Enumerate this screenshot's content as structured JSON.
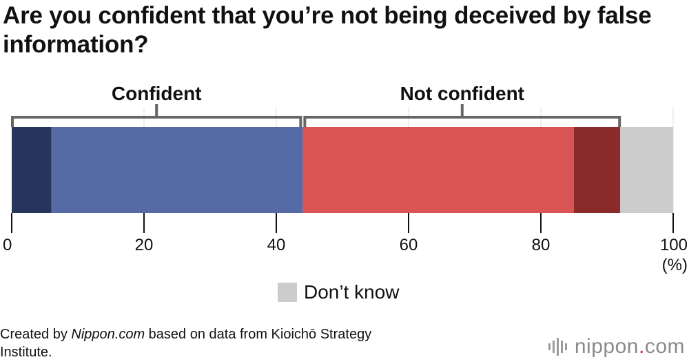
{
  "title": "Are you confident that you’re not being deceived by false information?",
  "chart_data": {
    "type": "bar",
    "orientation": "horizontal",
    "stacked": true,
    "segments": [
      {
        "name": "",
        "value": 6,
        "color": "#27345c"
      },
      {
        "name": "",
        "value": 38,
        "color": "#566aa6"
      },
      {
        "name": "",
        "value": 41,
        "color": "#d95555"
      },
      {
        "name": "",
        "value": 7,
        "color": "#8b2a2a"
      },
      {
        "name": "Don’t know",
        "value": 8,
        "color": "#cccccc"
      }
    ],
    "groups": [
      {
        "label": "Confident",
        "from": 0,
        "to": 44
      },
      {
        "label": "Not confident",
        "from": 44,
        "to": 92
      }
    ],
    "xlim": [
      0,
      100
    ],
    "xticks": [
      "0",
      "20",
      "40",
      "60",
      "80",
      "100"
    ],
    "xunit": "(%)",
    "grid": true,
    "legend": {
      "position": "bottom",
      "label": "Don’t know"
    }
  },
  "footer": {
    "prefix": "Created by ",
    "source": "Nippon.com",
    "suffix": " based on data from Kioichō Strategy Institute."
  },
  "logo": {
    "name": "nippon",
    "dot": ".",
    "tld": "com"
  }
}
